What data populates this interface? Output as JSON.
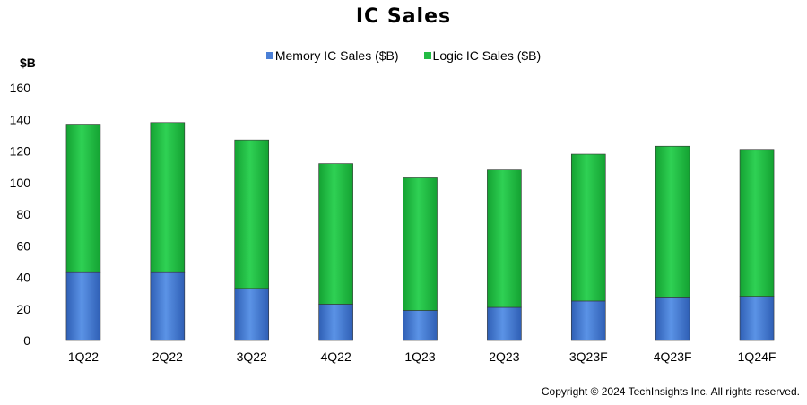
{
  "chart_data": {
    "type": "bar",
    "stacked": true,
    "title": "IC Sales",
    "ylabel": "$B",
    "xlabel": "",
    "ylim": [
      0,
      160
    ],
    "yticks": [
      0,
      20,
      40,
      60,
      80,
      100,
      120,
      140,
      160
    ],
    "categories": [
      "1Q22",
      "2Q22",
      "3Q22",
      "4Q22",
      "1Q23",
      "2Q23",
      "3Q23F",
      "4Q23F",
      "1Q24F"
    ],
    "series": [
      {
        "name": "Memory IC Sales ($B)",
        "color": "#4a7fd6",
        "values": [
          43,
          43,
          33,
          23,
          19,
          21,
          25,
          27,
          28
        ]
      },
      {
        "name": "Logic IC Sales ($B)",
        "color": "#22bb44",
        "values": [
          94,
          95,
          94,
          89,
          84,
          87,
          93,
          96,
          93
        ]
      }
    ],
    "grid": false,
    "legend": "top-center"
  },
  "footer": {
    "copyright": "Copyright © 2024 TechInsights Inc.  All rights reserved."
  }
}
